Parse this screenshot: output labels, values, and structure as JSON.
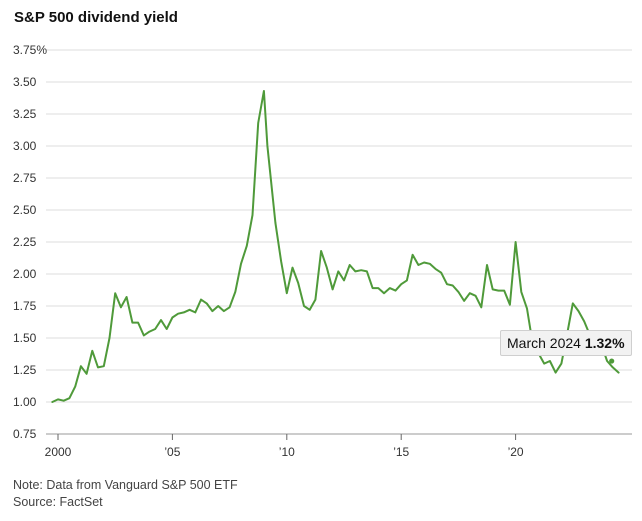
{
  "chart_data": {
    "type": "line",
    "title": "S&P 500 dividend yield",
    "xlabel": "",
    "ylabel": "",
    "xlim": [
      2000,
      2025
    ],
    "ylim": [
      0.75,
      3.75
    ],
    "y_ticks": [
      0.75,
      1.0,
      1.25,
      1.5,
      1.75,
      2.0,
      2.25,
      2.5,
      2.75,
      3.0,
      3.25,
      3.5,
      3.75
    ],
    "y_tick_labels": [
      "0.75",
      "1.00",
      "1.25",
      "1.50",
      "1.75",
      "2.00",
      "2.25",
      "2.50",
      "2.75",
      "3.00",
      "3.25",
      "3.50",
      "3.75%"
    ],
    "x_ticks": [
      2000,
      2005,
      2010,
      2015,
      2020
    ],
    "x_tick_labels": [
      "2000",
      "’05",
      "’10",
      "’15",
      "’20"
    ],
    "grid": true,
    "series": [
      {
        "name": "S&P 500 dividend yield",
        "color": "#4f9a3a",
        "x": [
          1999.75,
          2000.0,
          2000.25,
          2000.5,
          2000.75,
          2001.0,
          2001.25,
          2001.5,
          2001.75,
          2002.0,
          2002.25,
          2002.5,
          2002.75,
          2003.0,
          2003.25,
          2003.5,
          2003.75,
          2004.0,
          2004.25,
          2004.5,
          2004.75,
          2005.0,
          2005.25,
          2005.5,
          2005.75,
          2006.0,
          2006.25,
          2006.5,
          2006.75,
          2007.0,
          2007.25,
          2007.5,
          2007.75,
          2008.0,
          2008.25,
          2008.5,
          2008.75,
          2009.0,
          2009.15,
          2009.5,
          2009.75,
          2010.0,
          2010.25,
          2010.5,
          2010.75,
          2011.0,
          2011.25,
          2011.5,
          2011.75,
          2012.0,
          2012.25,
          2012.5,
          2012.75,
          2013.0,
          2013.25,
          2013.5,
          2013.75,
          2014.0,
          2014.25,
          2014.5,
          2014.75,
          2015.0,
          2015.25,
          2015.5,
          2015.75,
          2016.0,
          2016.25,
          2016.5,
          2016.75,
          2017.0,
          2017.25,
          2017.5,
          2017.75,
          2018.0,
          2018.25,
          2018.5,
          2018.75,
          2019.0,
          2019.25,
          2019.5,
          2019.75,
          2020.0,
          2020.25,
          2020.5,
          2020.75,
          2021.0,
          2021.25,
          2021.5,
          2021.75,
          2022.0,
          2022.25,
          2022.5,
          2022.75,
          2023.0,
          2023.25,
          2023.5,
          2023.75,
          2024.0,
          2024.25,
          2024.5
        ],
        "y": [
          1.0,
          1.02,
          1.01,
          1.03,
          1.12,
          1.28,
          1.22,
          1.4,
          1.27,
          1.28,
          1.5,
          1.85,
          1.74,
          1.82,
          1.62,
          1.62,
          1.52,
          1.55,
          1.57,
          1.64,
          1.57,
          1.66,
          1.69,
          1.7,
          1.72,
          1.7,
          1.8,
          1.77,
          1.71,
          1.75,
          1.71,
          1.74,
          1.86,
          2.08,
          2.22,
          2.46,
          3.18,
          3.43,
          3.0,
          2.4,
          2.1,
          1.85,
          2.05,
          1.93,
          1.75,
          1.72,
          1.8,
          2.18,
          2.05,
          1.88,
          2.02,
          1.95,
          2.07,
          2.02,
          2.03,
          2.02,
          1.89,
          1.89,
          1.85,
          1.89,
          1.87,
          1.92,
          1.95,
          2.15,
          2.07,
          2.09,
          2.08,
          2.04,
          2.01,
          1.92,
          1.91,
          1.86,
          1.79,
          1.85,
          1.83,
          1.74,
          2.07,
          1.88,
          1.87,
          1.87,
          1.76,
          2.25,
          1.86,
          1.73,
          1.45,
          1.38,
          1.3,
          1.32,
          1.23,
          1.3,
          1.53,
          1.77,
          1.71,
          1.63,
          1.52,
          1.47,
          1.45,
          1.32,
          1.27,
          1.23
        ]
      }
    ],
    "annotation": {
      "label": "March 2024",
      "value_label": "1.32%",
      "x": 2024.2,
      "y": 1.32
    }
  },
  "footer": {
    "note": "Note: Data from Vanguard S&P 500 ETF",
    "source": "Source: FactSet"
  }
}
